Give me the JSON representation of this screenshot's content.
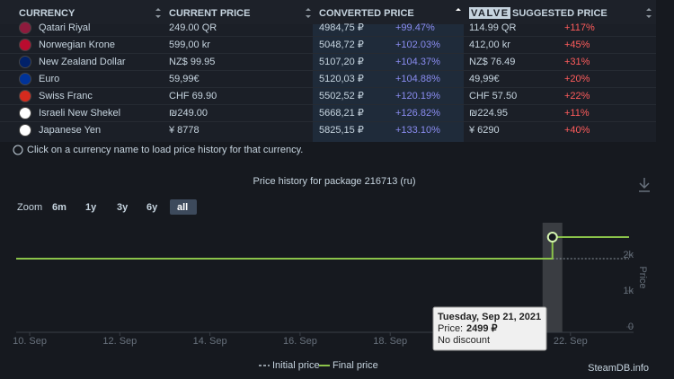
{
  "table": {
    "headers": [
      "CURRENCY",
      "CURRENT PRICE",
      "CONVERTED PRICE",
      "SUGGESTED PRICE"
    ],
    "badge": "VALVE",
    "rows": [
      [
        "Qatari Riyal",
        "249.00 QR",
        "4984,75 ₽",
        "+99.47%",
        "114.99 QR",
        "+117%"
      ],
      [
        "Norwegian Krone",
        "599,00 kr",
        "5048,72 ₽",
        "+102.03%",
        "412,00 kr",
        "+45%"
      ],
      [
        "New Zealand Dollar",
        "NZ$ 99.95",
        "5107,20 ₽",
        "+104.37%",
        "NZ$ 76.49",
        "+31%"
      ],
      [
        "Euro",
        "59,99€",
        "5120,03 ₽",
        "+104.88%",
        "49,99€",
        "+20%"
      ],
      [
        "Swiss Franc",
        "CHF 69.90",
        "5502,52 ₽",
        "+120.19%",
        "CHF 57.50",
        "+22%"
      ],
      [
        "Israeli New Shekel",
        "₪249.00",
        "5668,21 ₽",
        "+126.82%",
        "₪224.95",
        "+11%"
      ],
      [
        "Japanese Yen",
        "¥ 8778",
        "5825,15 ₽",
        "+133.10%",
        "¥ 6290",
        "+40%"
      ]
    ],
    "note": "Click on a currency name to load price history for that currency."
  },
  "chart_data": {
    "type": "line",
    "title": "Price history for package 216713 (ru)",
    "zoom_label": "Zoom",
    "zoom_options": [
      "6m",
      "1y",
      "3y",
      "6y",
      "all"
    ],
    "y_axis_label": "Price",
    "xlim": [
      9.7,
      23.4
    ],
    "xticks": [
      {
        "value": 10,
        "label": "10. Sep"
      },
      {
        "value": 12,
        "label": "12. Sep"
      },
      {
        "value": 14,
        "label": "14. Sep"
      },
      {
        "value": 16,
        "label": "16. Sep"
      },
      {
        "value": 18,
        "label": "18. Sep"
      },
      {
        "value": 22,
        "label": "22. Sep"
      }
    ],
    "ylim": [
      0,
      2900
    ],
    "yticks": [
      0,
      {
        "value": 1000,
        "label": "1k"
      },
      {
        "value": 2000,
        "label": "2k"
      }
    ],
    "series": [
      {
        "name": "Initial price",
        "color": "#8f98a0",
        "dashed": true,
        "x": [
          21.6,
          23.3
        ],
        "values": [
          1899,
          1899
        ]
      },
      {
        "name": "Final price",
        "color": "#8bc34a",
        "x": [
          9.7,
          21.6,
          21.6,
          23.3
        ],
        "values": [
          1899,
          1899,
          2499,
          2499
        ]
      }
    ],
    "tooltip": {
      "date": "Tuesday, Sep 21, 2021",
      "price_label": "Price:",
      "price": "2499 ₽",
      "discount": "No discount"
    },
    "watermark": "SteamDB.info"
  }
}
